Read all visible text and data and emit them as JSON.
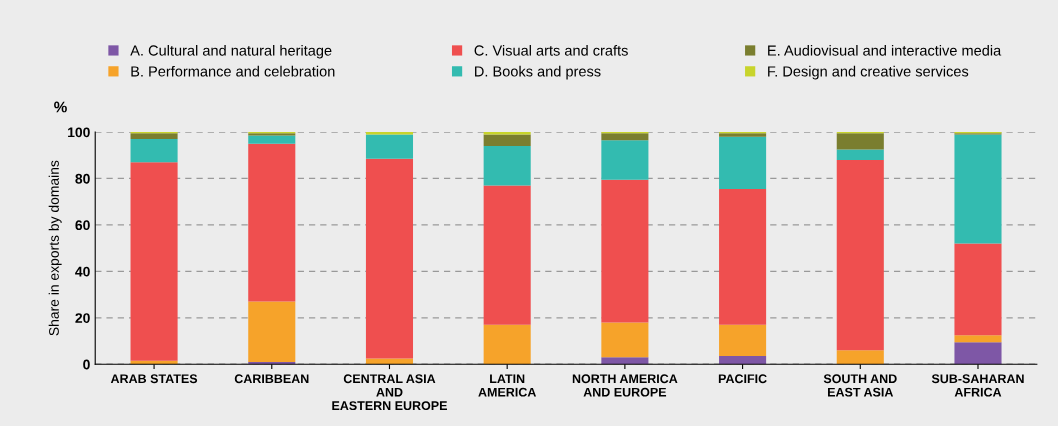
{
  "chart_data": {
    "type": "bar",
    "stacked": true,
    "ylabel": "Share in exports by domains",
    "annotations": [
      "%"
    ],
    "categories": [
      "ARAB STATES",
      "CARIBBEAN",
      "CENTRAL ASIA\nAND\nEASTERN EUROPE",
      "LATIN\nAMERICA",
      "NORTH AMERICA\nAND EUROPE",
      "PACIFIC",
      "SOUTH AND\nEAST ASIA",
      "SUB-SAHARAN\nAFRICA"
    ],
    "series": [
      {
        "name": "A. Cultural and natural heritage",
        "color": "#7e57a6",
        "values": [
          0,
          1,
          0,
          0,
          3,
          3.5,
          0,
          9.5
        ]
      },
      {
        "name": "B. Performance and celebration",
        "color": "#f6a32a",
        "values": [
          1.5,
          26,
          2.5,
          17,
          15,
          13.5,
          6,
          3
        ]
      },
      {
        "name": "C. Visual arts and crafts",
        "color": "#ef4f4f",
        "values": [
          85.5,
          68,
          86,
          60,
          61.5,
          58.5,
          82,
          39.5
        ]
      },
      {
        "name": "D. Books and press",
        "color": "#33bbb0",
        "values": [
          10,
          3.5,
          10.5,
          17,
          17,
          22.5,
          4.5,
          47
        ]
      },
      {
        "name": "E. Audiovisual and interactive media",
        "color": "#7a7e2f",
        "values": [
          2.5,
          1,
          0,
          5,
          3,
          1.5,
          7,
          0.5
        ]
      },
      {
        "name": "F. Design and creative services",
        "color": "#c8d42c",
        "values": [
          0.5,
          0.5,
          1,
          1,
          0.5,
          0.5,
          0.5,
          0.5
        ]
      }
    ],
    "ylim": [
      0,
      100
    ],
    "yticks": [
      0,
      20,
      40,
      60,
      80,
      100
    ],
    "grid": "y",
    "legend": "top"
  }
}
